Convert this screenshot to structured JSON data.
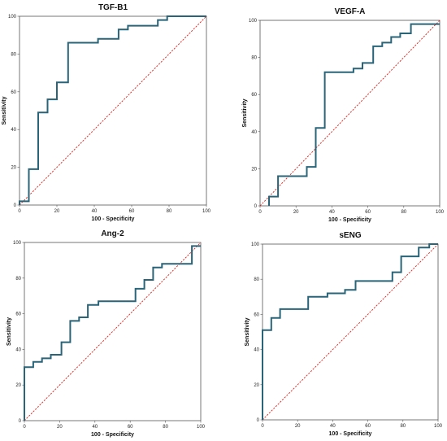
{
  "colors": {
    "roc": "#2a6478",
    "reference": "#e0231b",
    "frame": "#555555"
  },
  "chart_data": [
    {
      "type": "line",
      "title": "TGF-B1",
      "xlabel": "100 - Specificity",
      "ylabel": "Sensitivity",
      "xlim": [
        0,
        100
      ],
      "ylim": [
        0,
        100
      ],
      "xticks": [
        0,
        20,
        40,
        60,
        80,
        100
      ],
      "yticks": [
        0,
        20,
        40,
        60,
        80,
        100
      ],
      "grid": false,
      "reference_line": true,
      "series": [
        {
          "x": [
            0,
            0,
            5,
            5,
            10,
            10,
            15,
            15,
            20,
            20,
            26,
            26,
            42,
            42,
            53,
            53,
            58,
            58,
            74,
            74,
            79,
            79,
            100
          ],
          "y": [
            0,
            2,
            2,
            19,
            19,
            49,
            49,
            56,
            56,
            65,
            65,
            86,
            86,
            88,
            88,
            93,
            93,
            95,
            95,
            98,
            98,
            100,
            100
          ]
        }
      ]
    },
    {
      "type": "line",
      "title": "VEGF-A",
      "xlabel": "100 - Specificity",
      "ylabel": "Sensitivity",
      "xlim": [
        0,
        100
      ],
      "ylim": [
        0,
        100
      ],
      "xticks": [
        0,
        20,
        40,
        60,
        80,
        100
      ],
      "yticks": [
        0,
        20,
        40,
        60,
        80,
        100
      ],
      "grid": false,
      "reference_line": true,
      "series": [
        {
          "x": [
            5,
            5,
            10,
            10,
            26,
            26,
            31,
            31,
            36,
            36,
            52,
            52,
            57,
            57,
            63,
            63,
            68,
            68,
            73,
            73,
            78,
            78,
            84,
            84,
            100
          ],
          "y": [
            0,
            5,
            5,
            16,
            16,
            21,
            21,
            42,
            42,
            72,
            72,
            74,
            74,
            77,
            77,
            86,
            86,
            88,
            88,
            91,
            91,
            93,
            93,
            98,
            98
          ]
        }
      ]
    },
    {
      "type": "line",
      "title": "Ang-2",
      "xlabel": "100 - Specificity",
      "ylabel": "Sensitivity",
      "xlim": [
        0,
        100
      ],
      "ylim": [
        0,
        100
      ],
      "xticks": [
        0,
        20,
        40,
        60,
        80,
        100
      ],
      "yticks": [
        0,
        20,
        40,
        60,
        80,
        100
      ],
      "grid": false,
      "reference_line": true,
      "series": [
        {
          "x": [
            0,
            0,
            5,
            5,
            10,
            10,
            15,
            15,
            21,
            21,
            26,
            26,
            31,
            31,
            36,
            36,
            42,
            42,
            63,
            63,
            68,
            68,
            73,
            73,
            78,
            78,
            95,
            95,
            100
          ],
          "y": [
            0,
            30,
            30,
            33,
            33,
            35,
            35,
            37,
            37,
            44,
            44,
            56,
            56,
            58,
            58,
            65,
            65,
            67,
            67,
            74,
            74,
            79,
            79,
            86,
            86,
            88,
            88,
            98,
            98
          ]
        }
      ]
    },
    {
      "type": "line",
      "title": "sENG",
      "xlabel": "100 - Specificity",
      "ylabel": "Sensitivity",
      "xlim": [
        0,
        100
      ],
      "ylim": [
        0,
        100
      ],
      "xticks": [
        0,
        20,
        40,
        60,
        80,
        100
      ],
      "yticks": [
        0,
        20,
        40,
        60,
        80,
        100
      ],
      "grid": false,
      "reference_line": true,
      "series": [
        {
          "x": [
            0,
            0,
            5,
            5,
            10,
            10,
            26,
            26,
            37,
            37,
            47,
            47,
            53,
            53,
            74,
            74,
            79,
            79,
            89,
            89,
            95,
            95,
            100
          ],
          "y": [
            0,
            51,
            51,
            58,
            58,
            63,
            63,
            70,
            70,
            72,
            72,
            74,
            74,
            79,
            79,
            84,
            84,
            93,
            93,
            98,
            98,
            100,
            100
          ]
        }
      ]
    }
  ]
}
